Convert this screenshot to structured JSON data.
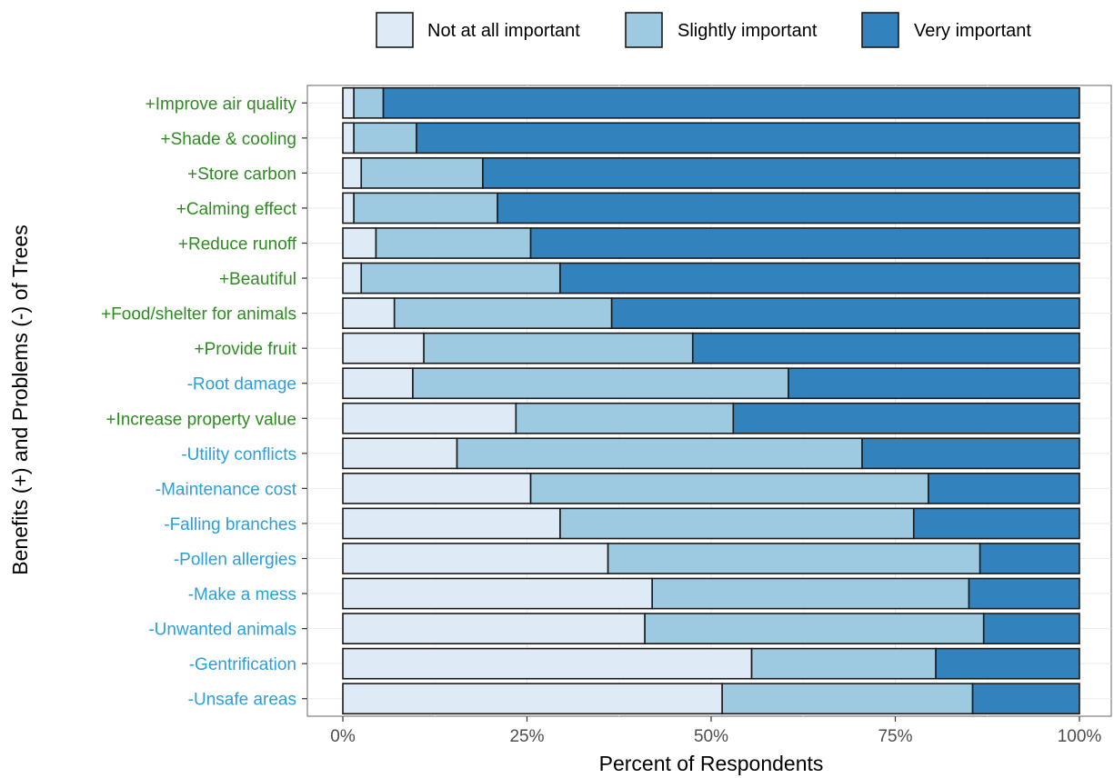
{
  "chart_data": {
    "type": "bar",
    "orientation": "horizontal",
    "stacked": true,
    "normalized": true,
    "xlabel": "Percent of Respondents",
    "ylabel": "Benefits (+) and Problems (-) of Trees",
    "xlim": [
      0,
      100
    ],
    "x_ticks": [
      "0%",
      "25%",
      "50%",
      "75%",
      "100%"
    ],
    "x_tick_values": [
      0,
      25,
      50,
      75,
      100
    ],
    "grid": true,
    "legend_position": "top",
    "category_colors": {
      "benefit": "#2e8b22",
      "problem": "#2b9fd8"
    },
    "categories": [
      "+Improve air quality",
      "+Shade & cooling",
      "+Store carbon",
      "+Calming effect",
      "+Reduce runoff",
      "+Beautiful",
      "+Food/shelter for animals",
      "+Provide fruit",
      "-Root damage",
      "+Increase property value",
      "-Utility conflicts",
      "-Maintenance cost",
      "-Falling branches",
      "-Pollen allergies",
      "-Make a mess",
      "-Unwanted animals",
      "-Gentrification",
      "-Unsafe areas"
    ],
    "category_types": [
      "benefit",
      "benefit",
      "benefit",
      "benefit",
      "benefit",
      "benefit",
      "benefit",
      "benefit",
      "problem",
      "benefit",
      "problem",
      "problem",
      "problem",
      "problem",
      "problem",
      "problem",
      "problem",
      "problem"
    ],
    "series": [
      {
        "name": "Not at all important",
        "color": "#deebf7",
        "values": [
          1.5,
          1.5,
          2.5,
          1.5,
          4.5,
          2.5,
          7,
          11,
          9.5,
          23.5,
          15.5,
          25.5,
          29.5,
          36,
          42,
          41,
          55.5,
          51.5
        ]
      },
      {
        "name": "Slightly important",
        "color": "#9ecae1",
        "values": [
          4,
          8.5,
          16.5,
          19.5,
          21,
          27,
          29.5,
          36.5,
          51,
          29.5,
          55,
          54,
          48,
          50.5,
          43,
          46,
          25,
          34
        ]
      },
      {
        "name": "Very important",
        "color": "#3182bd",
        "values": [
          94.5,
          90,
          81,
          79,
          74.5,
          70.5,
          63.5,
          52.5,
          39.5,
          47,
          29.5,
          20.5,
          22.5,
          13.5,
          15,
          13,
          19.5,
          14.5
        ]
      }
    ]
  }
}
